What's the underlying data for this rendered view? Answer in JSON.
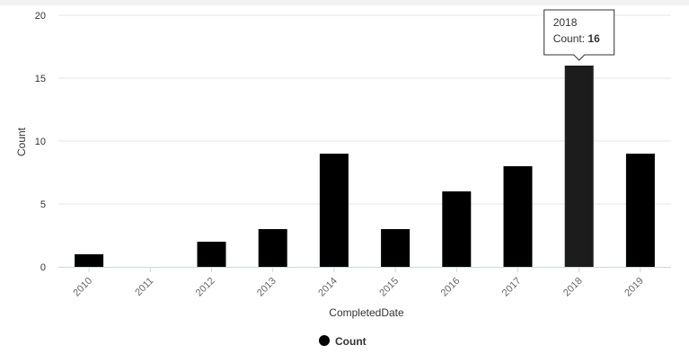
{
  "chart_data": {
    "type": "bar",
    "categories": [
      "2010",
      "2011",
      "2012",
      "2013",
      "2014",
      "2015",
      "2016",
      "2017",
      "2018",
      "2019"
    ],
    "series": [
      {
        "name": "Count",
        "values": [
          1,
          0,
          2,
          3,
          9,
          3,
          6,
          8,
          16,
          9
        ],
        "color": "#000000"
      }
    ],
    "xlabel": "CompletedDate",
    "ylabel": "Count",
    "ylim": [
      0,
      20
    ],
    "yticks": [
      0,
      5,
      10,
      15,
      20
    ],
    "grid": true,
    "legend": "bottom-center",
    "highlight_color": "#1c1c1c",
    "tooltip": {
      "category": "2018",
      "label": "Count",
      "value": "16"
    }
  }
}
